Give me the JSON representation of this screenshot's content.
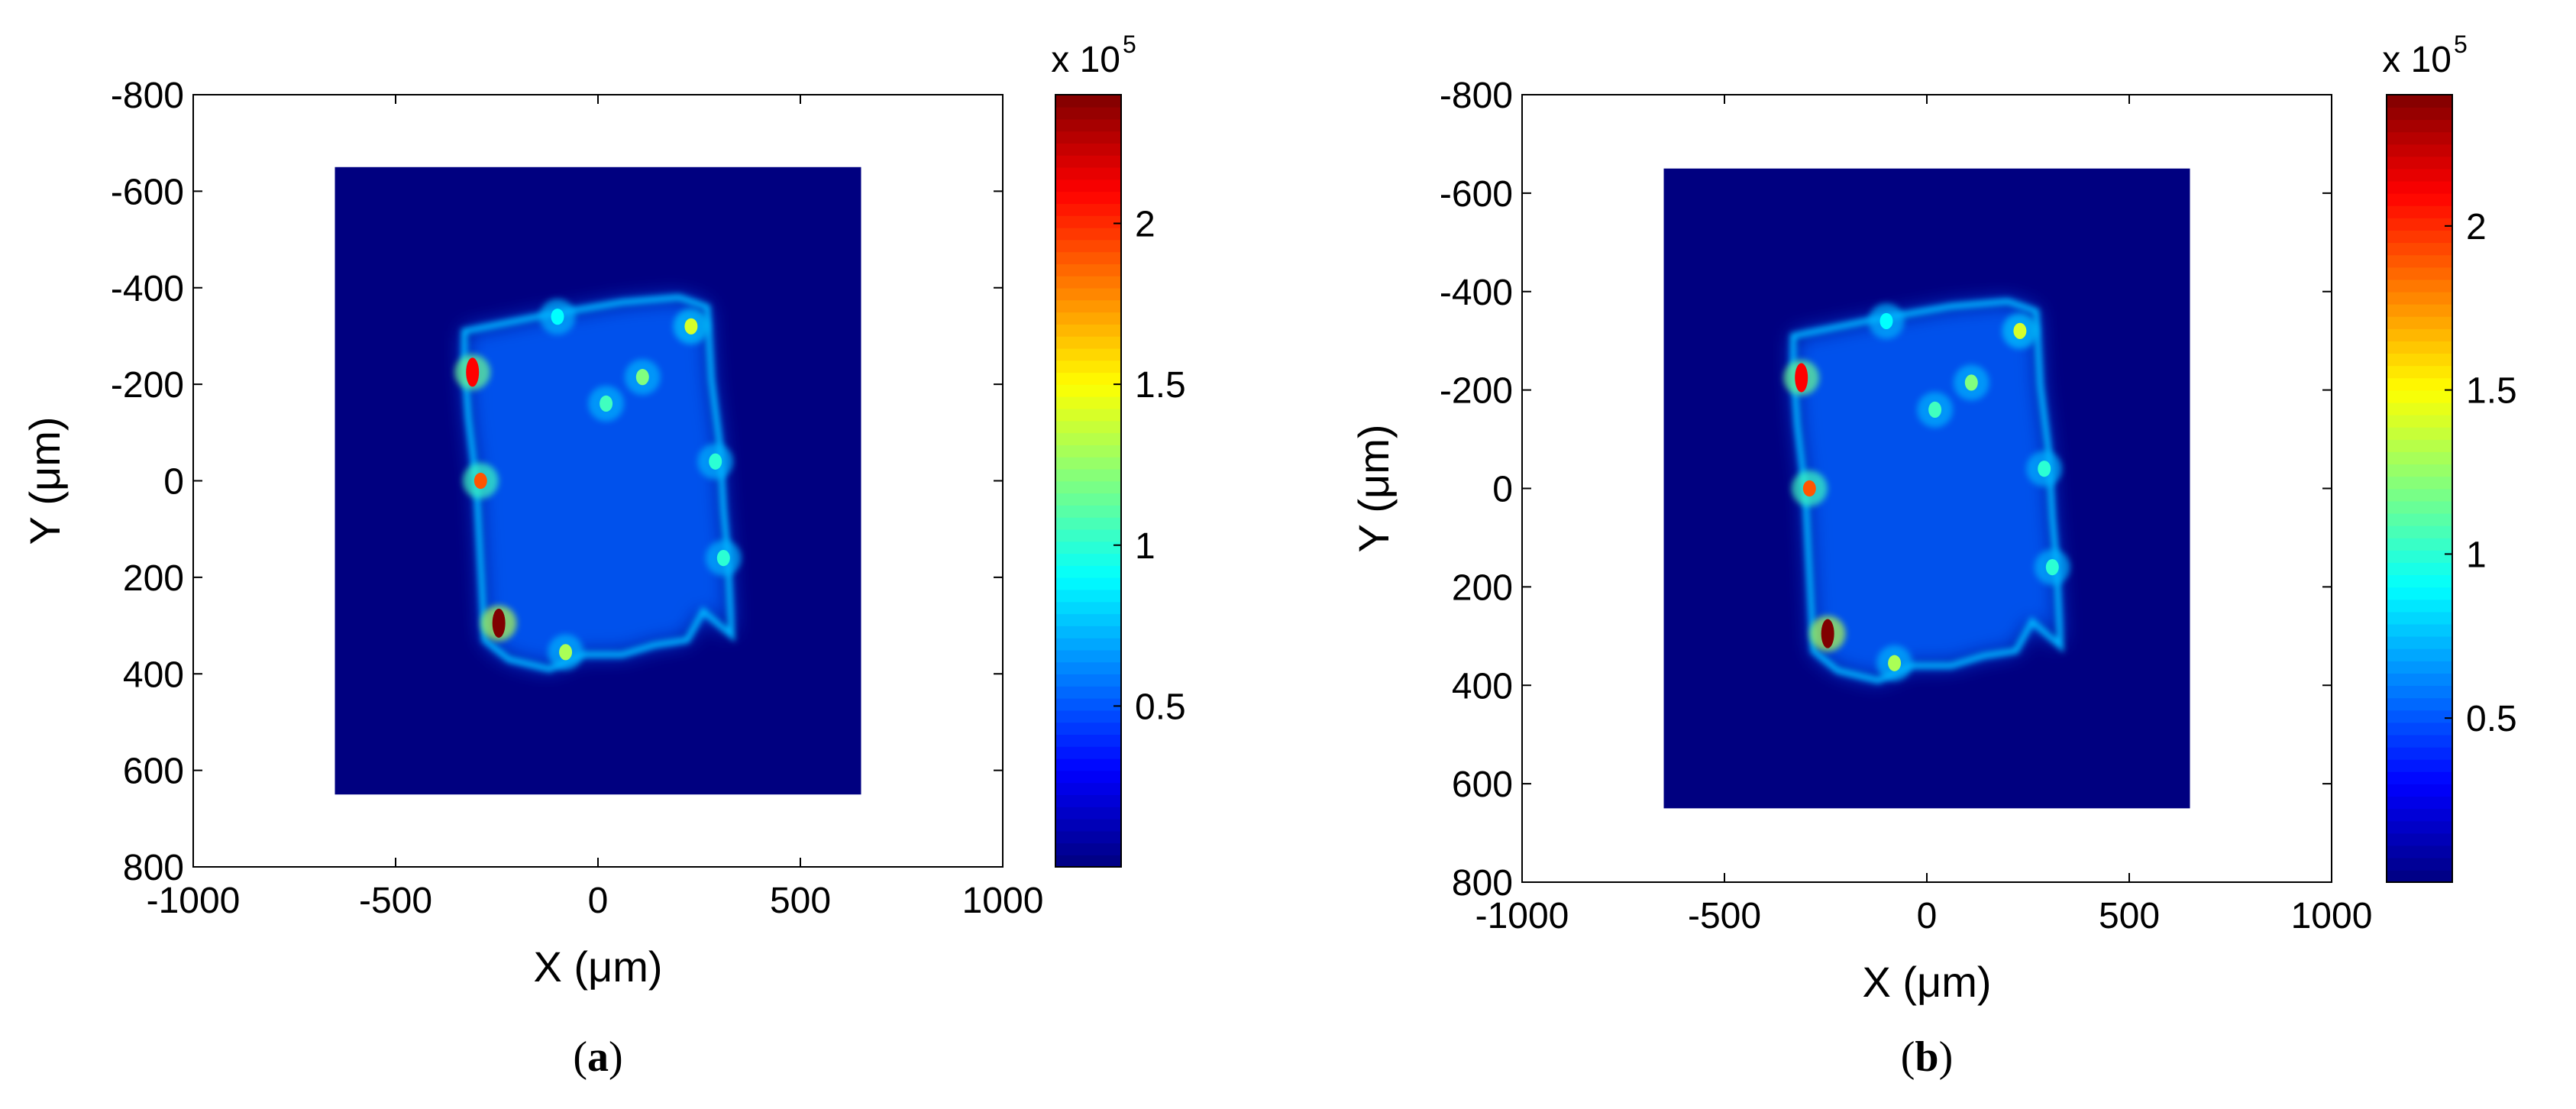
{
  "chart_data": [
    {
      "type": "heatmap",
      "panel_label": "(a)",
      "panel_letter": "a",
      "xlabel": "X (μm)",
      "ylabel": "Y (μm)",
      "xlim": [
        -1000,
        1000
      ],
      "ylim": [
        -800,
        800
      ],
      "y_reversed": true,
      "xticks": [
        -1000,
        -500,
        0,
        500,
        1000
      ],
      "yticks": [
        -800,
        -600,
        -400,
        -200,
        0,
        200,
        400,
        600,
        800
      ],
      "colormap": "jet",
      "colorbar": {
        "multiplier": "x 10",
        "exponent": "5",
        "range": [
          0,
          2.4
        ],
        "ticks": [
          0.5,
          1,
          1.5,
          2
        ],
        "tick_labels": [
          "0.5",
          "1",
          "1.5",
          "2"
        ]
      },
      "background_region": {
        "x": [
          -650,
          650
        ],
        "y": [
          -650,
          650
        ],
        "value": 0
      },
      "sample_outline": [
        [
          -330,
          -310
        ],
        [
          -150,
          -340
        ],
        [
          60,
          -370
        ],
        [
          200,
          -380
        ],
        [
          270,
          -360
        ],
        [
          280,
          -210
        ],
        [
          300,
          -80
        ],
        [
          310,
          60
        ],
        [
          320,
          150
        ],
        [
          330,
          320
        ],
        [
          260,
          270
        ],
        [
          220,
          330
        ],
        [
          140,
          340
        ],
        [
          60,
          360
        ],
        [
          -40,
          360
        ],
        [
          -120,
          390
        ],
        [
          -220,
          370
        ],
        [
          -280,
          330
        ],
        [
          -290,
          170
        ],
        [
          -300,
          10
        ],
        [
          -320,
          -130
        ],
        [
          -330,
          -250
        ]
      ],
      "hotspots": [
        {
          "x": -310,
          "y": -225,
          "value": 2.1
        },
        {
          "x": -290,
          "y": 0,
          "value": 1.9
        },
        {
          "x": -245,
          "y": 295,
          "value": 2.4
        },
        {
          "x": -80,
          "y": 355,
          "value": 1.3
        },
        {
          "x": 20,
          "y": -160,
          "value": 1.05
        },
        {
          "x": 110,
          "y": -215,
          "value": 1.2
        },
        {
          "x": 230,
          "y": -320,
          "value": 1.4
        },
        {
          "x": 290,
          "y": -40,
          "value": 1.0
        },
        {
          "x": 310,
          "y": 160,
          "value": 1.0
        },
        {
          "x": -100,
          "y": -340,
          "value": 0.9
        }
      ]
    },
    {
      "type": "heatmap",
      "panel_label": "(b)",
      "panel_letter": "b",
      "xlabel": "X (μm)",
      "ylabel": "Y (μm)",
      "xlim": [
        -1000,
        1000
      ],
      "ylim": [
        -800,
        800
      ],
      "y_reversed": true,
      "xticks": [
        -1000,
        -500,
        0,
        500,
        1000
      ],
      "yticks": [
        -800,
        -600,
        -400,
        -200,
        0,
        200,
        400,
        600,
        800
      ],
      "colormap": "jet",
      "colorbar": {
        "multiplier": "x 10",
        "exponent": "5",
        "range": [
          0,
          2.4
        ],
        "ticks": [
          0.5,
          1,
          1.5,
          2
        ],
        "tick_labels": [
          "0.5",
          "1",
          "1.5",
          "2"
        ]
      },
      "background_region": {
        "x": [
          -650,
          650
        ],
        "y": [
          -650,
          650
        ],
        "value": 0
      },
      "sample_outline": [
        [
          -330,
          -310
        ],
        [
          -150,
          -340
        ],
        [
          60,
          -370
        ],
        [
          200,
          -380
        ],
        [
          270,
          -360
        ],
        [
          280,
          -210
        ],
        [
          300,
          -80
        ],
        [
          310,
          60
        ],
        [
          320,
          150
        ],
        [
          330,
          320
        ],
        [
          260,
          270
        ],
        [
          220,
          330
        ],
        [
          140,
          340
        ],
        [
          60,
          360
        ],
        [
          -40,
          360
        ],
        [
          -120,
          390
        ],
        [
          -220,
          370
        ],
        [
          -280,
          330
        ],
        [
          -290,
          170
        ],
        [
          -300,
          10
        ],
        [
          -320,
          -130
        ],
        [
          -330,
          -250
        ]
      ],
      "hotspots": [
        {
          "x": -310,
          "y": -225,
          "value": 2.1
        },
        {
          "x": -290,
          "y": 0,
          "value": 1.9
        },
        {
          "x": -245,
          "y": 295,
          "value": 2.4
        },
        {
          "x": -80,
          "y": 355,
          "value": 1.3
        },
        {
          "x": 20,
          "y": -160,
          "value": 1.05
        },
        {
          "x": 110,
          "y": -215,
          "value": 1.2
        },
        {
          "x": 230,
          "y": -320,
          "value": 1.4
        },
        {
          "x": 290,
          "y": -40,
          "value": 1.0
        },
        {
          "x": 310,
          "y": 160,
          "value": 1.0
        },
        {
          "x": -100,
          "y": -340,
          "value": 0.9
        }
      ]
    }
  ]
}
